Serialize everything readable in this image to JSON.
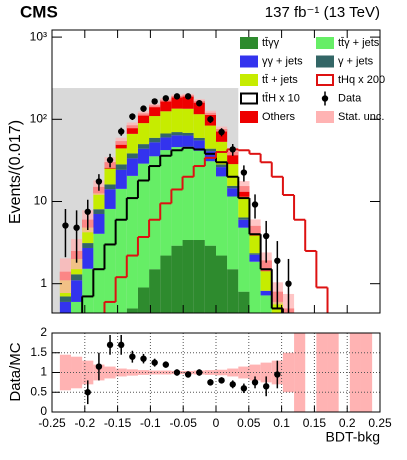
{
  "chart_data": {
    "type": "histogram",
    "title": "CMS",
    "subtitle": "137 fb⁻¹ (13 TeV)",
    "x_label": "BDT-bkg",
    "y_label": "Events/(0.017)",
    "log_scale": true,
    "bins": [
      -0.238,
      -0.221,
      -0.204,
      -0.187,
      -0.17,
      -0.153,
      -0.136,
      -0.119,
      -0.102,
      -0.085,
      -0.068,
      -0.051,
      -0.034,
      -0.017,
      0,
      0.017,
      0.034,
      0.051,
      0.068,
      0.085,
      0.102,
      0.119,
      0.136,
      0.153,
      0.17,
      0.187,
      0.204,
      0.221,
      0.238
    ],
    "xlim": [
      -0.25,
      0.25
    ],
    "xticks": [
      -0.25,
      -0.2,
      -0.15,
      -0.1,
      -0.05,
      0,
      0.05,
      0.1,
      0.15,
      0.2,
      0.25
    ],
    "ylim": [
      0.44,
      1220
    ],
    "yticks": [
      1,
      10,
      {
        "value": 100,
        "label": "10²"
      },
      {
        "value": 1000,
        "label": "10³"
      }
    ],
    "shaded_region": {
      "x": [
        -0.25,
        0.034
      ],
      "y_top": 240,
      "color": "#d9d9d9"
    },
    "series": [
      {
        "name": "tt̄γγ",
        "color": "#2e8b2e",
        "style": "stack",
        "values": [
          0,
          0,
          0.02,
          0.05,
          0.12,
          0.25,
          0.5,
          0.9,
          1.5,
          2.2,
          2.9,
          3.4,
          3.4,
          2.9,
          2.2,
          1.5,
          0.8,
          0.35,
          0.12,
          0,
          0,
          0,
          0,
          0,
          0,
          0,
          0,
          0
        ]
      },
      {
        "name": "tt̄γ + jets",
        "color": "#66ee66",
        "style": "stack",
        "values": [
          0.3,
          0.6,
          1.5,
          4,
          8,
          14,
          20,
          28,
          34,
          40,
          43,
          43,
          38,
          28,
          18,
          10,
          4,
          1.5,
          0.6,
          0.3,
          0.2,
          0,
          0,
          0,
          0,
          0,
          0,
          0
        ]
      },
      {
        "name": "γγ + jets",
        "color": "#3333ee",
        "style": "stack",
        "values": [
          0.3,
          0.5,
          1.2,
          3,
          6,
          10,
          13,
          15,
          17,
          18,
          18,
          17,
          14,
          10,
          6,
          3,
          1.2,
          0.4,
          0.1,
          0,
          0,
          0,
          0,
          0,
          0,
          0,
          0,
          0
        ]
      },
      {
        "name": "γ + jets",
        "color": "#336666",
        "style": "stack",
        "values": [
          0.1,
          0.2,
          0.4,
          1,
          2,
          4,
          5,
          6,
          7,
          7,
          6,
          5,
          4,
          3,
          2,
          1,
          0.4,
          0.1,
          0,
          0,
          0,
          0,
          0,
          0,
          0,
          0,
          0,
          0
        ]
      },
      {
        "name": "tt̄ + jets",
        "color": "#c6ec00",
        "style": "stack",
        "values": [
          0.4,
          0.7,
          1.7,
          4.5,
          9,
          16,
          28,
          40,
          50,
          58,
          65,
          66,
          56,
          40,
          25,
          13,
          5,
          1.5,
          0.6,
          0.3,
          0.2,
          0,
          0,
          0,
          0,
          0,
          0,
          0
        ]
      },
      {
        "name": "Others",
        "color": "#ee0000",
        "style": "stack",
        "values": [
          0.3,
          0.5,
          1.2,
          2.5,
          5,
          10,
          18,
          28,
          38,
          48,
          57,
          62,
          52,
          36,
          23,
          12,
          4,
          1.2,
          0.5,
          0.2,
          0.1,
          0,
          0,
          0,
          0,
          0,
          0,
          0
        ]
      },
      {
        "name": "tt̄H x 10",
        "color": "#000000",
        "style": "step",
        "values": [
          0,
          0.3,
          0.7,
          1.5,
          3,
          6,
          11,
          18,
          27,
          36,
          42,
          45,
          43,
          38,
          30,
          20,
          11,
          4,
          1.5,
          0.5,
          0,
          0,
          0,
          0,
          0,
          0,
          0,
          0
        ]
      },
      {
        "name": "tHq x 200",
        "color": "#dd1111",
        "style": "step",
        "values": [
          0,
          0,
          0,
          0.3,
          0.6,
          1.2,
          2.2,
          3.7,
          6,
          9.5,
          14,
          20,
          27,
          34,
          40,
          43,
          42,
          38,
          30,
          20,
          12,
          6,
          2.5,
          0.9,
          0.3,
          0,
          0,
          0
        ]
      },
      {
        "name": "Data",
        "color": "#000000",
        "style": "points",
        "values": [
          5.1,
          4.8,
          7.5,
          17.5,
          32,
          71,
          108,
          135,
          165,
          180,
          190,
          190,
          157,
          100,
          70,
          43,
          22.5,
          9.2,
          3.8,
          1.9,
          1,
          null,
          null,
          null,
          null,
          null,
          null,
          null
        ],
        "errors": [
          3,
          3,
          3,
          4,
          6,
          8,
          10,
          12,
          13,
          13,
          14,
          14,
          13,
          10,
          8,
          7,
          5,
          3,
          2,
          1.4,
          1,
          null,
          null,
          null,
          null,
          null,
          null,
          null
        ]
      }
    ],
    "stat_unc": {
      "name": "Stat. unc.",
      "color": "#ffb3b3",
      "values": [
        0.45,
        0.4,
        0.3,
        0.2,
        0.15,
        0.1,
        0.08,
        0.06,
        0.05,
        0.05,
        0.04,
        0.04,
        0.05,
        0.06,
        0.07,
        0.1,
        0.15,
        0.2,
        0.25,
        0.3,
        0.5,
        1,
        null,
        1,
        1,
        null,
        1,
        1
      ]
    },
    "ratio": {
      "y_label": "Data/MC",
      "ylim": [
        0,
        2
      ],
      "yticks": [
        0,
        0.5,
        1,
        1.5,
        2
      ],
      "grid": true,
      "values": [
        null,
        null,
        0.5,
        1.15,
        1.7,
        1.7,
        1.4,
        1.35,
        1.25,
        1.2,
        1.0,
        0.95,
        1.0,
        0.75,
        0.8,
        0.7,
        0.6,
        0.75,
        0.65,
        0.95,
        null,
        null,
        null,
        null,
        null,
        null,
        null,
        null
      ],
      "errors": [
        null,
        null,
        0.3,
        0.35,
        0.25,
        0.25,
        0.15,
        0.12,
        0.1,
        0.08,
        0.08,
        0.08,
        0.08,
        0.08,
        0.08,
        0.1,
        0.12,
        0.15,
        0.25,
        0.35,
        null,
        null,
        null,
        null,
        null,
        null,
        null,
        null
      ]
    }
  }
}
